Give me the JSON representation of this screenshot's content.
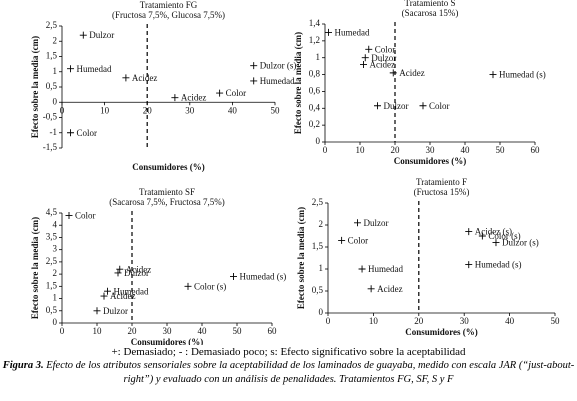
{
  "chart_data": [
    {
      "type": "scatter",
      "title": "Tratamiento FG",
      "subtitle": "(Fructosa 7,5%, Glucosa 7,5%)",
      "x_label": "Consumidores (%)",
      "y_label": "Efecto sobre la media (cm)",
      "xlim": [
        0,
        50
      ],
      "xticks": [
        0,
        10,
        20,
        30,
        40,
        50
      ],
      "ylim": [
        -1.5,
        2.5
      ],
      "yticks": [
        {
          "value": -1.5,
          "label": "-1,5"
        },
        -1,
        {
          "value": -0.5,
          "label": "-0,5"
        },
        0,
        {
          "value": 0.5,
          "label": "0,5"
        },
        1,
        {
          "value": 1.5,
          "label": "1,5"
        },
        2,
        {
          "value": 2.5,
          "label": "2,5"
        }
      ],
      "vline": 20,
      "points": [
        {
          "label": "Dulzor",
          "x": 5,
          "y": 2.2
        },
        {
          "label": "Humedad",
          "x": 2,
          "y": 1.1
        },
        {
          "label": "Acidez",
          "x": 15,
          "y": 0.8
        },
        {
          "label": "Acidez",
          "x": 26.5,
          "y": 0.15
        },
        {
          "label": "Color",
          "x": 37,
          "y": 0.3
        },
        {
          "label": "Dulzor (s)",
          "x": 45,
          "y": 1.2
        },
        {
          "label": "Humedad",
          "x": 45,
          "y": 0.7
        },
        {
          "label": "Color",
          "x": 2,
          "y": -1
        }
      ]
    },
    {
      "type": "scatter",
      "title": "Tratamiento S",
      "subtitle": "(Sacarosa 15%)",
      "x_label": "Consumidores (%)",
      "y_label": "Efecto sobre la media (cm)",
      "xlim": [
        0,
        60
      ],
      "xticks": [
        0,
        10,
        20,
        30,
        40,
        50,
        60
      ],
      "ylim": [
        0,
        1.4
      ],
      "yticks": [
        0,
        {
          "value": 0.2,
          "label": "0,2"
        },
        {
          "value": 0.4,
          "label": "0,4"
        },
        {
          "value": 0.6,
          "label": "0,6"
        },
        {
          "value": 0.8,
          "label": "0,8"
        },
        1,
        {
          "value": 1.2,
          "label": "1,2"
        },
        {
          "value": 1.4,
          "label": "1,4"
        }
      ],
      "vline": 20,
      "points": [
        {
          "label": "Humedad",
          "x": 1,
          "y": 1.3
        },
        {
          "label": "Color",
          "x": 12.5,
          "y": 1.1
        },
        {
          "label": "Dulzor",
          "x": 11.5,
          "y": 1
        },
        {
          "label": "Acidez",
          "x": 11,
          "y": 0.92
        },
        {
          "label": "Acidez",
          "x": 19.5,
          "y": 0.82
        },
        {
          "label": "Humedad (s)",
          "x": 48,
          "y": 0.8
        },
        {
          "label": "Dulzor",
          "x": 15,
          "y": 0.43
        },
        {
          "label": "Color",
          "x": 28,
          "y": 0.43
        }
      ]
    },
    {
      "type": "scatter",
      "title": "Tratamiento SF",
      "subtitle": "(Sacarosa 7,5%, Fructosa 7,5%)",
      "x_label": "Consumidores (%)",
      "y_label": "Efecto sobre la media (cm)",
      "xlim": [
        0,
        60
      ],
      "xticks": [
        0,
        10,
        20,
        30,
        40,
        50,
        60
      ],
      "ylim": [
        0,
        4.5
      ],
      "yticks": [
        0,
        {
          "value": 0.5,
          "label": "0,5"
        },
        1,
        {
          "value": 1.5,
          "label": "1,5"
        },
        2,
        {
          "value": 2.5,
          "label": "2,5"
        },
        3,
        {
          "value": 3.5,
          "label": "3,5"
        },
        4,
        {
          "value": 4.5,
          "label": "4,5"
        }
      ],
      "vline": 20,
      "points": [
        {
          "label": "Color",
          "x": 2,
          "y": 4.4
        },
        {
          "label": "Acidez",
          "x": 16.5,
          "y": 2.2
        },
        {
          "label": "Dulzor",
          "x": 16,
          "y": 2.05
        },
        {
          "label": "Humedad",
          "x": 13,
          "y": 1.3
        },
        {
          "label": "Acidez",
          "x": 12,
          "y": 1.1
        },
        {
          "label": "Dulzor",
          "x": 10,
          "y": 0.5
        },
        {
          "label": "Color (s)",
          "x": 36,
          "y": 1.5
        },
        {
          "label": "Humedad (s)",
          "x": 49,
          "y": 1.9
        }
      ]
    },
    {
      "type": "scatter",
      "title": "Tratamiento F",
      "subtitle": "(Fructosa 15%)",
      "x_label": "Consumidores (%)",
      "y_label": "Efecto sobre la media (cm)",
      "xlim": [
        0,
        50
      ],
      "xticks": [
        0,
        10,
        20,
        30,
        40,
        50
      ],
      "ylim": [
        0,
        2.5
      ],
      "yticks": [
        0,
        {
          "value": 0.5,
          "label": "0,5"
        },
        1,
        {
          "value": 1.5,
          "label": "1,5"
        },
        2,
        {
          "value": 2.5,
          "label": "2,5"
        }
      ],
      "vline": 20,
      "points": [
        {
          "label": "Dulzor",
          "x": 6.5,
          "y": 2.05
        },
        {
          "label": "Color",
          "x": 3,
          "y": 1.65
        },
        {
          "label": "Humedad",
          "x": 7.5,
          "y": 1
        },
        {
          "label": "Acidez",
          "x": 9.5,
          "y": 0.55
        },
        {
          "label": "Acidez (s)",
          "x": 31,
          "y": 1.85
        },
        {
          "label": "Color (s)",
          "x": 34,
          "y": 1.75
        },
        {
          "label": "Dulzor (s)",
          "x": 37,
          "y": 1.6
        },
        {
          "label": "Humedad (s)",
          "x": 31,
          "y": 1.1
        }
      ]
    }
  ],
  "legend_note": "+: Demasiado; - : Demasiado poco; s: Efecto significativo sobre la aceptabilidad",
  "caption": {
    "label": "Figura 3.",
    "text": "Efecto de los atributos sensoriales sobre la aceptabilidad de los laminados de guayaba, medido con escala JAR (“just-about-right”) y evaluado con un análisis de penalidades. Tratamientos FG, SF, S y F"
  }
}
